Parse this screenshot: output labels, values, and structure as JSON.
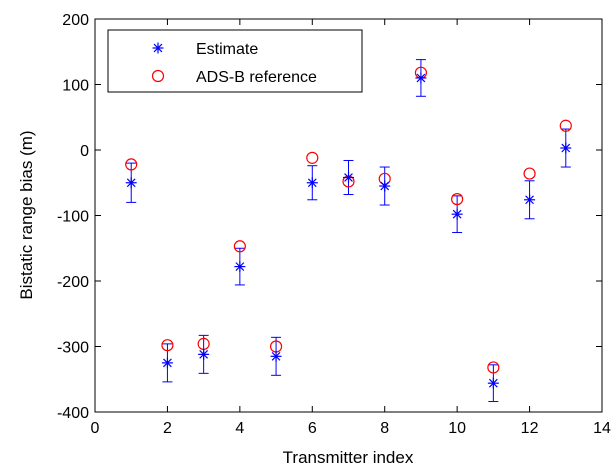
{
  "chart_data": {
    "type": "scatter",
    "title": "",
    "xlabel": "Transmitter index",
    "ylabel": "Bistatic range bias (m)",
    "xlim": [
      0,
      14
    ],
    "ylim": [
      -400,
      200
    ],
    "xticks": [
      0,
      2,
      4,
      6,
      8,
      10,
      12,
      14
    ],
    "yticks": [
      -400,
      -300,
      -200,
      -100,
      0,
      100,
      200
    ],
    "grid": false,
    "legend_position": "top-left",
    "x": [
      1,
      2,
      3,
      4,
      5,
      6,
      7,
      8,
      9,
      10,
      11,
      12,
      13
    ],
    "series": [
      {
        "name": "Estimate",
        "marker": "asterisk",
        "color": "#0000ff",
        "values": [
          -50,
          -325,
          -312,
          -178,
          -315,
          -50,
          -42,
          -55,
          110,
          -98,
          -356,
          -76,
          3
        ],
        "error_low": [
          -80,
          -354,
          -341,
          -206,
          -344,
          -76,
          -68,
          -84,
          82,
          -126,
          -384,
          -105,
          -26
        ],
        "error_high": [
          -20,
          -296,
          -283,
          -150,
          -286,
          -24,
          -16,
          -26,
          138,
          -70,
          -328,
          -47,
          32
        ]
      },
      {
        "name": "ADS-B reference",
        "marker": "circle",
        "color": "#ff0000",
        "values": [
          -22,
          -298,
          -296,
          -147,
          -300,
          -12,
          -48,
          -44,
          118,
          -75,
          -332,
          -36,
          37
        ]
      }
    ]
  }
}
